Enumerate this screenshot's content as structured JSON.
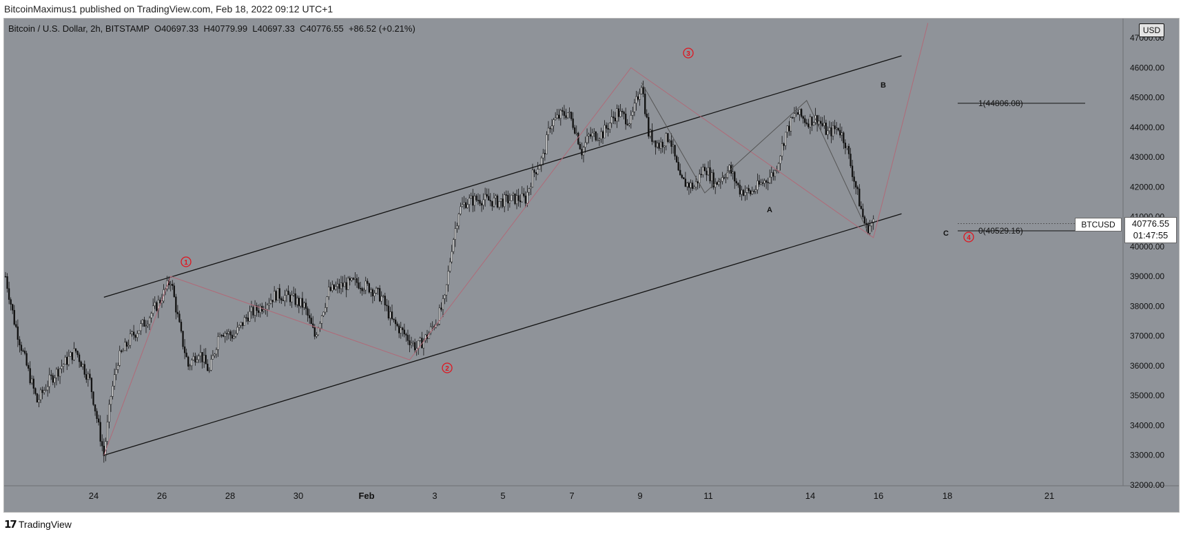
{
  "header": {
    "published": "BitcoinMaximus1 published on TradingView.com, Feb 18, 2022 09:12 UTC+1"
  },
  "legend": {
    "symbol": "Bitcoin / U.S. Dollar, 2h, BITSTAMP",
    "o_label": "O",
    "o_value": "40697.33",
    "h_label": "H",
    "h_value": "40779.99",
    "l_label": "L",
    "l_value": "40697.33",
    "c_label": "C",
    "c_value": "40776.55",
    "change": "+86.52 (+0.21%)"
  },
  "currency_badge": "USD",
  "price_tag": {
    "price": "40776.55",
    "countdown": "01:47:55"
  },
  "symbol_tag": "BTCUSD",
  "fib": {
    "level1": "1(44806.08)",
    "level0": "0(40529.16)"
  },
  "waves": [
    "1",
    "2",
    "3",
    "4"
  ],
  "abc": [
    "A",
    "B",
    "C"
  ],
  "brand": "TradingView",
  "colors": {
    "background": "#8f9399",
    "candle": "#111111",
    "wave_mark": "#e0141e",
    "channel": "#111111",
    "path": "#b06a78"
  },
  "chart_data": {
    "type": "candlestick",
    "title": "",
    "xlabel": "",
    "ylabel": "",
    "ylim": [
      32000,
      47000
    ],
    "y_ticks": [
      "47000.00",
      "46000.00",
      "45000.00",
      "44000.00",
      "43000.00",
      "42000.00",
      "41000.00",
      "40000.00",
      "39000.00",
      "38000.00",
      "37000.00",
      "36000.00",
      "35000.00",
      "34000.00",
      "33000.00",
      "32000.00"
    ],
    "x_ticks": [
      "24",
      "26",
      "28",
      "30",
      "Feb",
      "3",
      "5",
      "7",
      "9",
      "11",
      "14",
      "16",
      "18",
      "21"
    ],
    "anchors": [
      {
        "i": 0,
        "p": 39000
      },
      {
        "i": 5,
        "p": 37500
      },
      {
        "i": 12,
        "p": 36000
      },
      {
        "i": 18,
        "p": 34800
      },
      {
        "i": 25,
        "p": 35500
      },
      {
        "i": 32,
        "p": 36000
      },
      {
        "i": 40,
        "p": 36500
      },
      {
        "i": 48,
        "p": 35500
      },
      {
        "i": 56,
        "p": 33000
      },
      {
        "i": 60,
        "p": 35000
      },
      {
        "i": 64,
        "p": 36200
      },
      {
        "i": 72,
        "p": 37000
      },
      {
        "i": 80,
        "p": 37500
      },
      {
        "i": 88,
        "p": 38200
      },
      {
        "i": 94,
        "p": 38900
      },
      {
        "i": 100,
        "p": 37000
      },
      {
        "i": 104,
        "p": 36000
      },
      {
        "i": 110,
        "p": 36500
      },
      {
        "i": 116,
        "p": 35800
      },
      {
        "i": 122,
        "p": 37200
      },
      {
        "i": 130,
        "p": 37000
      },
      {
        "i": 138,
        "p": 37700
      },
      {
        "i": 146,
        "p": 38000
      },
      {
        "i": 154,
        "p": 38400
      },
      {
        "i": 162,
        "p": 38300
      },
      {
        "i": 170,
        "p": 38000
      },
      {
        "i": 176,
        "p": 37000
      },
      {
        "i": 184,
        "p": 38500
      },
      {
        "i": 192,
        "p": 38700
      },
      {
        "i": 200,
        "p": 38800
      },
      {
        "i": 208,
        "p": 38600
      },
      {
        "i": 214,
        "p": 38300
      },
      {
        "i": 220,
        "p": 37500
      },
      {
        "i": 228,
        "p": 37000
      },
      {
        "i": 234,
        "p": 36600
      },
      {
        "i": 240,
        "p": 37000
      },
      {
        "i": 246,
        "p": 37600
      },
      {
        "i": 250,
        "p": 38200
      },
      {
        "i": 254,
        "p": 40000
      },
      {
        "i": 258,
        "p": 41200
      },
      {
        "i": 262,
        "p": 41500
      },
      {
        "i": 270,
        "p": 41600
      },
      {
        "i": 280,
        "p": 41500
      },
      {
        "i": 290,
        "p": 41600
      },
      {
        "i": 296,
        "p": 41600
      },
      {
        "i": 300,
        "p": 42400
      },
      {
        "i": 306,
        "p": 43000
      },
      {
        "i": 310,
        "p": 44100
      },
      {
        "i": 316,
        "p": 44400
      },
      {
        "i": 320,
        "p": 44500
      },
      {
        "i": 324,
        "p": 44000
      },
      {
        "i": 328,
        "p": 43200
      },
      {
        "i": 332,
        "p": 43700
      },
      {
        "i": 340,
        "p": 43800
      },
      {
        "i": 348,
        "p": 44500
      },
      {
        "i": 356,
        "p": 44200
      },
      {
        "i": 362,
        "p": 45500
      },
      {
        "i": 366,
        "p": 43800
      },
      {
        "i": 372,
        "p": 43400
      },
      {
        "i": 378,
        "p": 43700
      },
      {
        "i": 384,
        "p": 42200
      },
      {
        "i": 392,
        "p": 42000
      },
      {
        "i": 398,
        "p": 42700
      },
      {
        "i": 404,
        "p": 42100
      },
      {
        "i": 412,
        "p": 42600
      },
      {
        "i": 418,
        "p": 41900
      },
      {
        "i": 424,
        "p": 41800
      },
      {
        "i": 432,
        "p": 42200
      },
      {
        "i": 438,
        "p": 42500
      },
      {
        "i": 444,
        "p": 43800
      },
      {
        "i": 450,
        "p": 44500
      },
      {
        "i": 456,
        "p": 44200
      },
      {
        "i": 462,
        "p": 44300
      },
      {
        "i": 468,
        "p": 43800
      },
      {
        "i": 474,
        "p": 44000
      },
      {
        "i": 478,
        "p": 43500
      },
      {
        "i": 484,
        "p": 42000
      },
      {
        "i": 488,
        "p": 41000
      },
      {
        "i": 490,
        "p": 40600
      },
      {
        "i": 494,
        "p": 40800
      }
    ],
    "channel": {
      "upper": [
        {
          "i": 56,
          "p": 38300
        },
        {
          "i": 510,
          "p": 46400
        }
      ],
      "lower": [
        {
          "i": 56,
          "p": 33000
        },
        {
          "i": 510,
          "p": 41100
        }
      ]
    }
  }
}
